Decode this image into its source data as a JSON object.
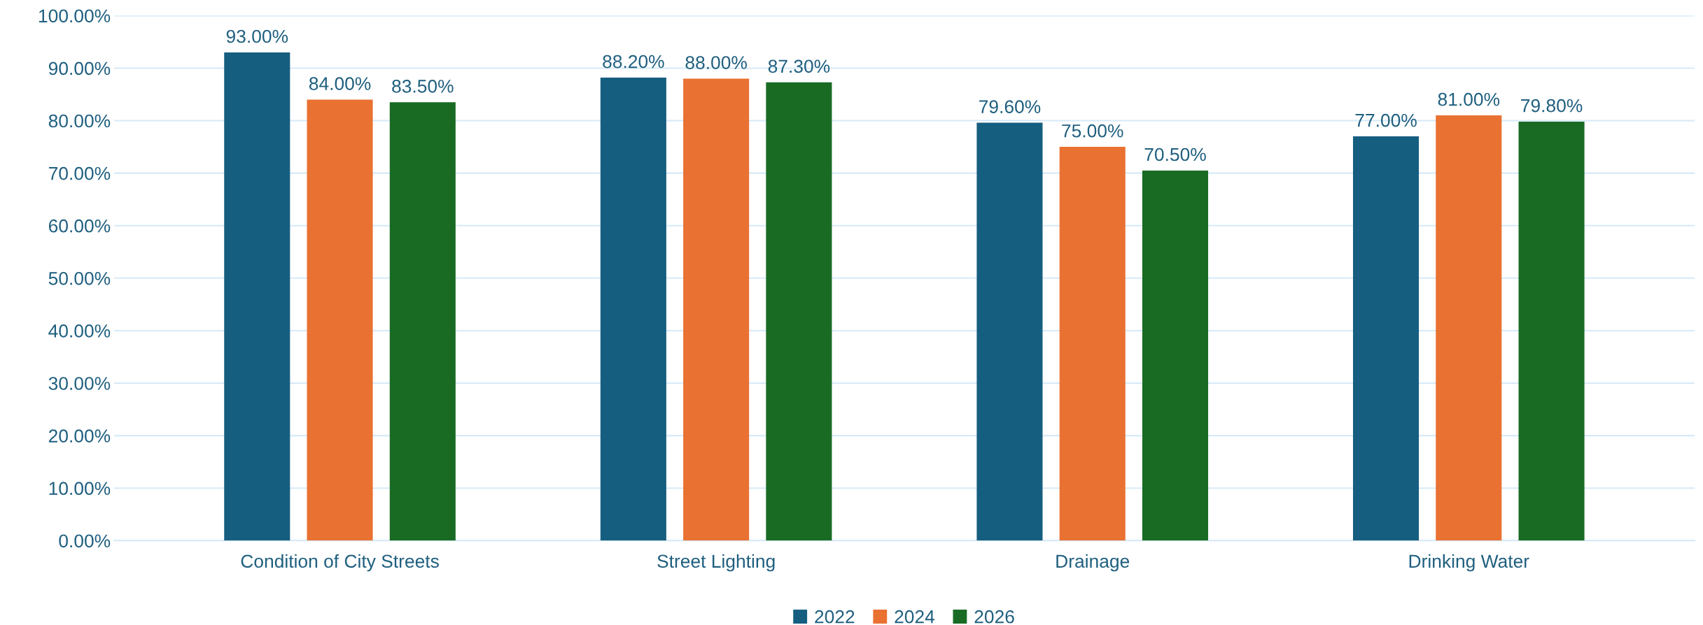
{
  "chart_data": {
    "type": "bar",
    "categories": [
      "Condition of City Streets",
      "Street Lighting",
      "Drainage",
      "Drinking Water"
    ],
    "series": [
      {
        "name": "2022",
        "color": "#165e80",
        "values": [
          93.0,
          88.2,
          79.6,
          77.0
        ],
        "value_labels": [
          "93.00%",
          "88.20%",
          "79.60%",
          "77.00%"
        ]
      },
      {
        "name": "2024",
        "color": "#e97132",
        "values": [
          84.0,
          88.0,
          75.0,
          81.0
        ],
        "value_labels": [
          "84.00%",
          "88.00%",
          "75.00%",
          "81.00%"
        ]
      },
      {
        "name": "2026",
        "color": "#196b24",
        "values": [
          83.5,
          87.3,
          70.5,
          79.8
        ],
        "value_labels": [
          "83.50%",
          "87.30%",
          "70.50%",
          "79.80%"
        ]
      }
    ],
    "ylim": [
      0,
      100
    ],
    "yticks": [
      {
        "value": 0,
        "label": "0.00%"
      },
      {
        "value": 10,
        "label": "10.00%"
      },
      {
        "value": 20,
        "label": "20.00%"
      },
      {
        "value": 30,
        "label": "30.00%"
      },
      {
        "value": 40,
        "label": "40.00%"
      },
      {
        "value": 50,
        "label": "50.00%"
      },
      {
        "value": 60,
        "label": "60.00%"
      },
      {
        "value": 70,
        "label": "70.00%"
      },
      {
        "value": 80,
        "label": "80.00%"
      },
      {
        "value": 90,
        "label": "90.00%"
      },
      {
        "value": 100,
        "label": "100.00%"
      }
    ],
    "grid": "y",
    "legend": "bottom"
  }
}
